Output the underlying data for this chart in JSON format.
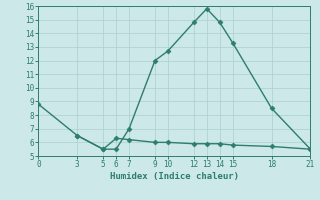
{
  "title": "",
  "xlabel": "Humidex (Indice chaleur)",
  "line1_x": [
    0,
    3,
    5,
    6,
    7,
    9,
    10,
    12,
    13,
    14,
    15,
    18,
    21
  ],
  "line1_y": [
    8.8,
    6.5,
    5.5,
    5.5,
    7.0,
    12.0,
    12.7,
    14.8,
    15.8,
    14.8,
    13.3,
    8.5,
    5.5
  ],
  "line2_x": [
    3,
    5,
    6,
    7,
    9,
    10,
    12,
    13,
    14,
    15,
    18,
    21
  ],
  "line2_y": [
    6.5,
    5.5,
    6.3,
    6.2,
    6.0,
    6.0,
    5.9,
    5.9,
    5.9,
    5.8,
    5.7,
    5.5
  ],
  "color": "#2e7d6e",
  "bg_color": "#cce8e8",
  "plot_bg_color": "#cce8e8",
  "grid_color": "#aacfcf",
  "ylim": [
    5,
    16
  ],
  "xlim": [
    0,
    21
  ],
  "yticks": [
    5,
    6,
    7,
    8,
    9,
    10,
    11,
    12,
    13,
    14,
    15,
    16
  ],
  "xticks": [
    0,
    3,
    5,
    6,
    7,
    9,
    10,
    12,
    13,
    14,
    15,
    18,
    21
  ],
  "markersize": 2.5,
  "linewidth": 1.0
}
